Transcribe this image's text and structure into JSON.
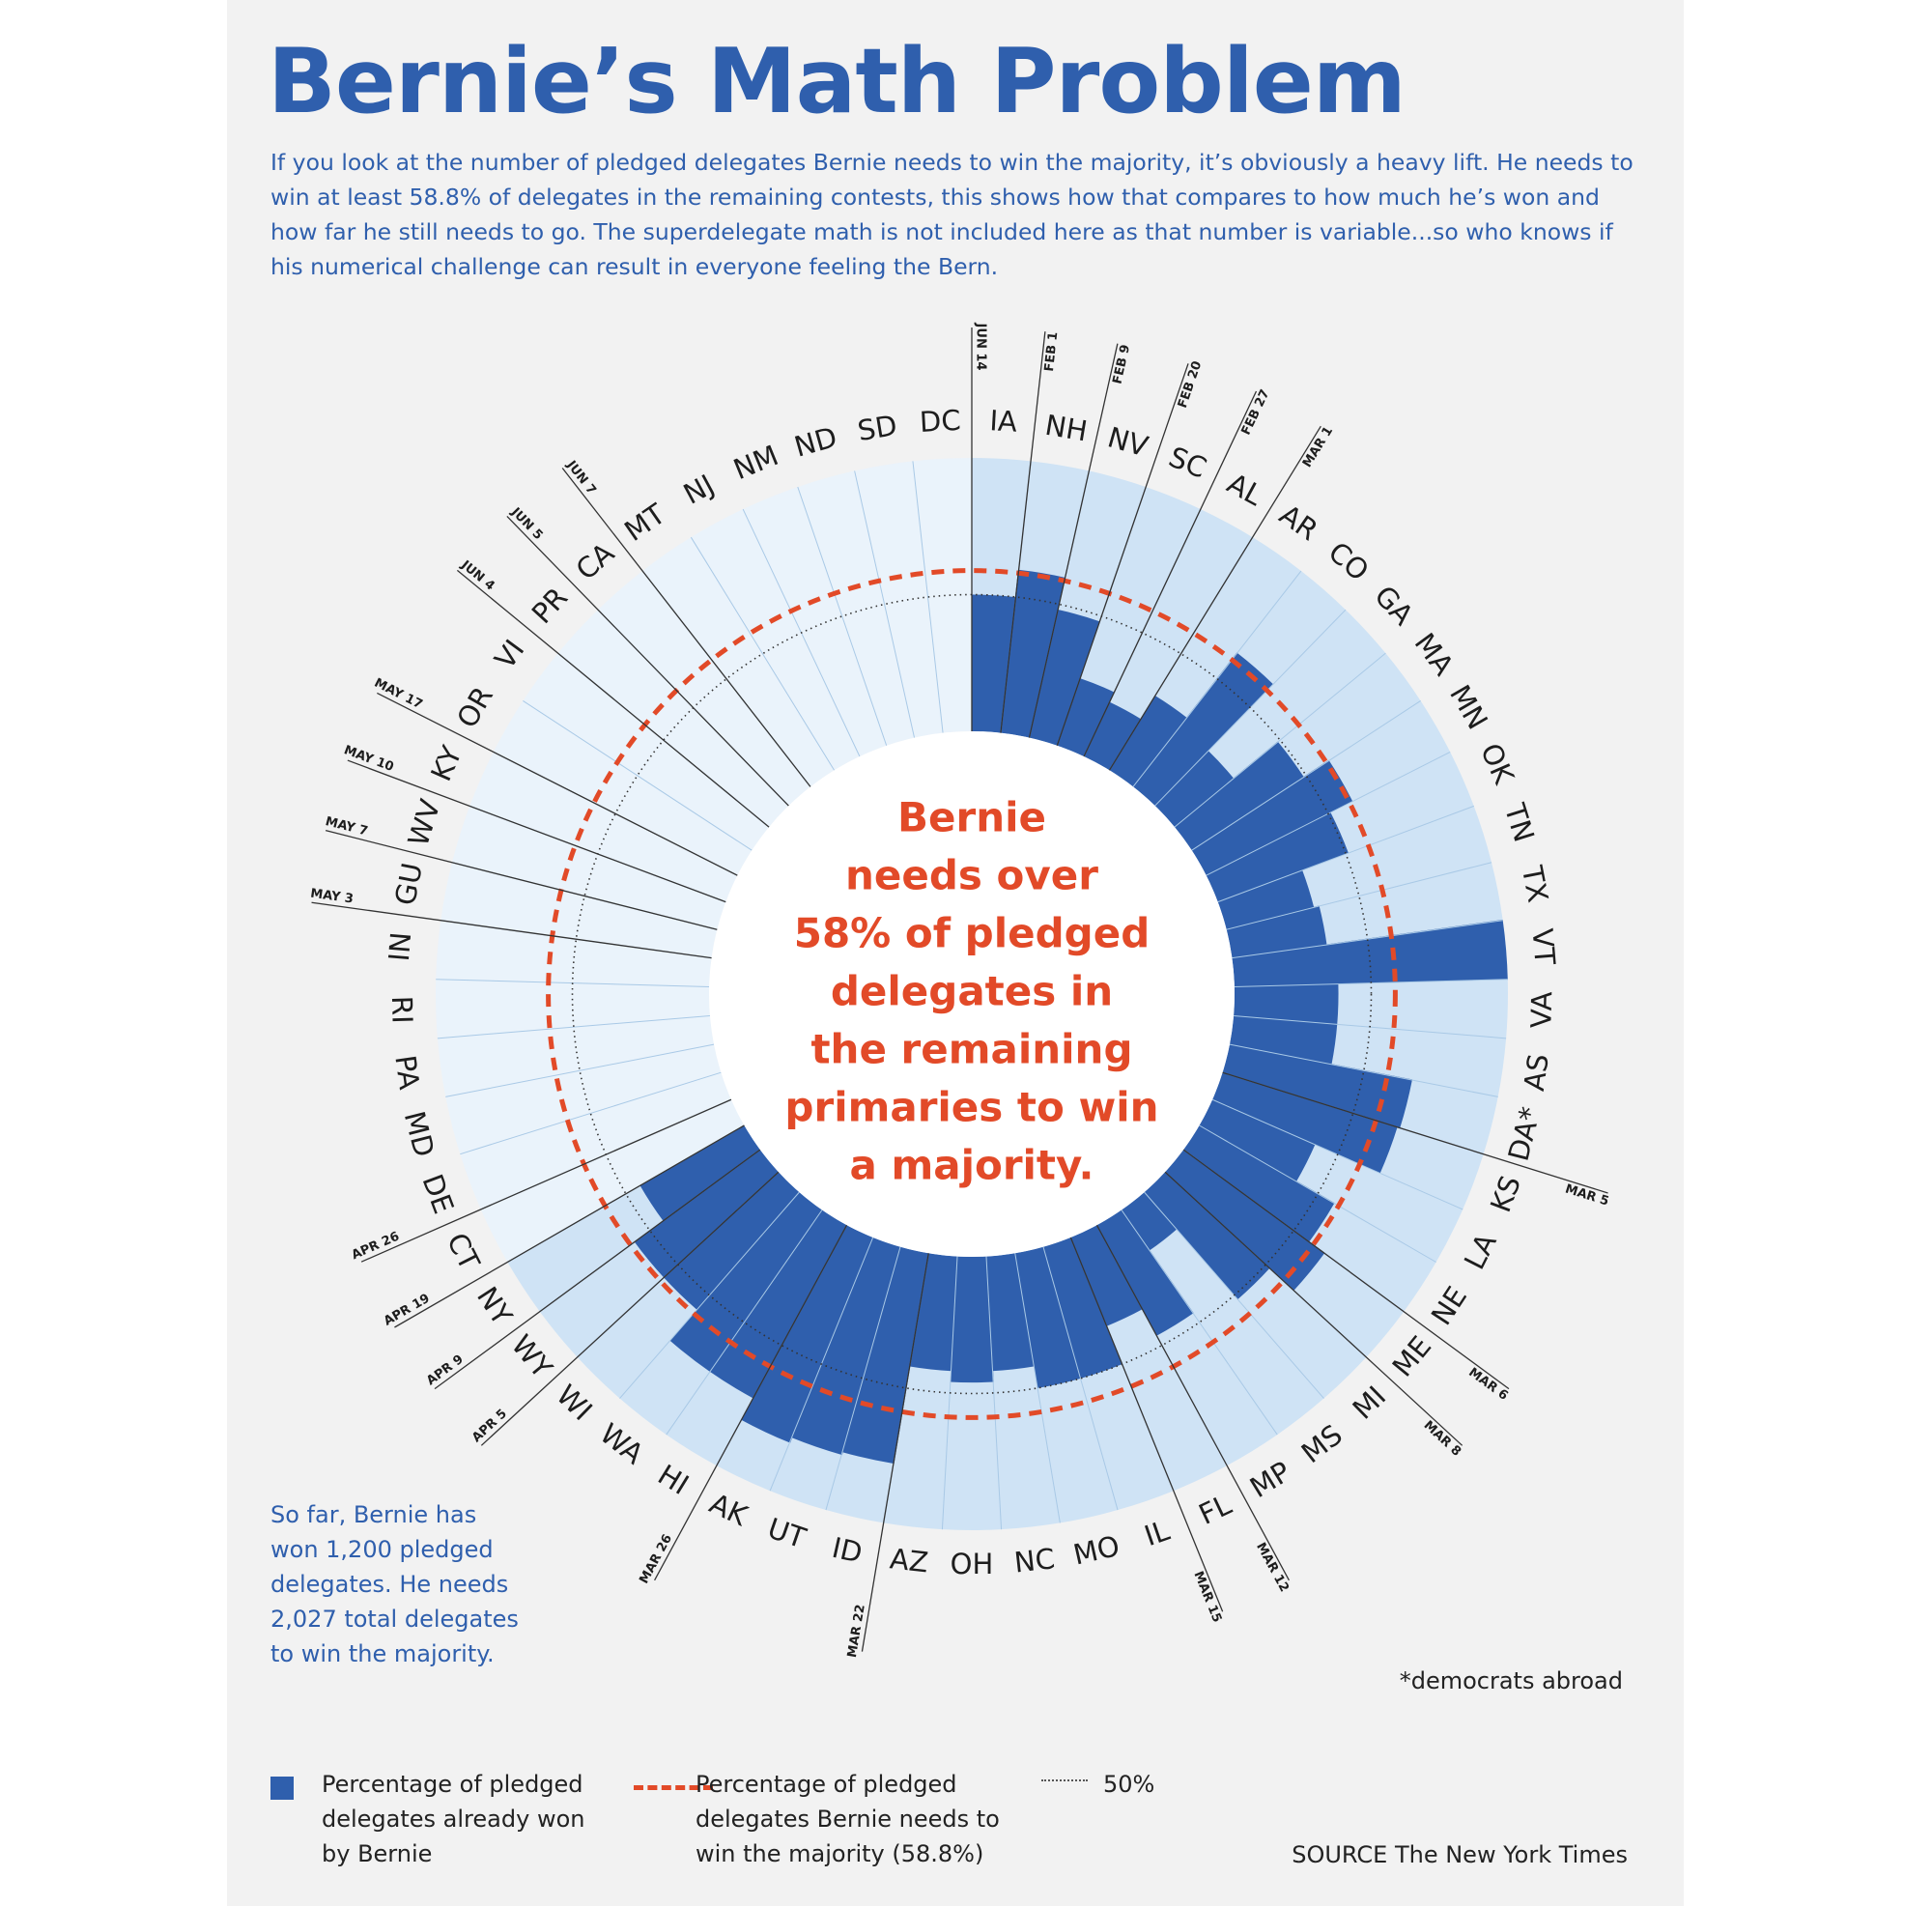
{
  "title": "Bernie’s Math Problem",
  "intro": "If you look at the number of pledged delegates Bernie needs to win the majority, it’s obviously a heavy lift. He needs to win at least 58.8% of delegates in the remaining contests, this shows how that compares to how much he’s won and how far he still needs to go. The superdelegate math is not included here as that number is variable...so who knows if his numerical challenge can result in everyone feeling the Bern.",
  "center_text": [
    "Bernie",
    "needs over",
    "58% of pledged",
    "delegates in",
    "the remaining",
    "primaries to win",
    "a majority."
  ],
  "note_left": "So far, Bernie has won 1,200 pledged delegates. He needs 2,027 total delegates to win the majority.",
  "footnote": "*democrats abroad",
  "legend": {
    "won": "Percentage of pledged delegates already won by Bernie",
    "needed": "Percentage of pledged delegates Bernie needs to win the majority (58.8%)",
    "fifty": "50%"
  },
  "source": "SOURCE The New York Times",
  "colors": {
    "won": "#2f5fad",
    "held_contest": "#cfe3f5",
    "future_contest": "#eaf3fb",
    "needed_line": "#e24a28",
    "text_blue": "#2f5fad"
  },
  "chart_data": {
    "type": "radial_bar",
    "value_unit": "percent of pledged delegates",
    "needed_threshold": 58.8,
    "reference_line": 50,
    "states": [
      "IA",
      "NH",
      "NV",
      "SC",
      "AL",
      "AR",
      "CO",
      "GA",
      "MA",
      "MN",
      "OK",
      "TN",
      "TX",
      "VT",
      "VA",
      "AS",
      "DA*",
      "KS",
      "LA",
      "NE",
      "ME",
      "MI",
      "MS",
      "MP",
      "FL",
      "IL",
      "MO",
      "NC",
      "OH",
      "AZ",
      "ID",
      "UT",
      "AK",
      "HI",
      "WA",
      "WI",
      "WY",
      "NY",
      "CT",
      "DE",
      "MD",
      "PA",
      "RI",
      "IN",
      "GU",
      "WV",
      "KY",
      "OR",
      "VI",
      "PR",
      "CA",
      "MT",
      "NJ",
      "NM",
      "ND",
      "SD",
      "DC"
    ],
    "won_pct": [
      50,
      60,
      48,
      26,
      22,
      32,
      62,
      28,
      49,
      60,
      51,
      33,
      35,
      100,
      38,
      38,
      68,
      67,
      41,
      57,
      64,
      52,
      18,
      46,
      35,
      50,
      50,
      42,
      46,
      42,
      78,
      79,
      81,
      72,
      72,
      57,
      57,
      44,
      null,
      null,
      null,
      null,
      null,
      null,
      null,
      null,
      null,
      null,
      null,
      null,
      null,
      null,
      null,
      null,
      null,
      null,
      null
    ],
    "date_labels": [
      {
        "label": "FEB 1",
        "after": 0
      },
      {
        "label": "FEB 9",
        "after": 1
      },
      {
        "label": "FEB 20",
        "after": 2
      },
      {
        "label": "FEB 27",
        "after": 3
      },
      {
        "label": "MAR 1",
        "after": 4
      },
      {
        "label": "MAR 5",
        "after": 16
      },
      {
        "label": "MAR 6",
        "after": 19
      },
      {
        "label": "MAR 8",
        "after": 20
      },
      {
        "label": "MAR 12",
        "after": 23
      },
      {
        "label": "MAR 15",
        "after": 24
      },
      {
        "label": "MAR 22",
        "after": 29
      },
      {
        "label": "MAR 26",
        "after": 32
      },
      {
        "label": "APR 5",
        "after": 35
      },
      {
        "label": "APR 9",
        "after": 36
      },
      {
        "label": "APR 19",
        "after": 37
      },
      {
        "label": "APR 26",
        "after": 38
      },
      {
        "label": "MAY 3",
        "after": 43
      },
      {
        "label": "MAY 7",
        "after": 44
      },
      {
        "label": "MAY 10",
        "after": 45
      },
      {
        "label": "MAY 17",
        "after": 46
      },
      {
        "label": "JUN 4",
        "after": 48
      },
      {
        "label": "JUN 5",
        "after": 49
      },
      {
        "label": "JUN 7",
        "after": 50
      },
      {
        "label": "JUN 14",
        "after": 56
      }
    ]
  }
}
